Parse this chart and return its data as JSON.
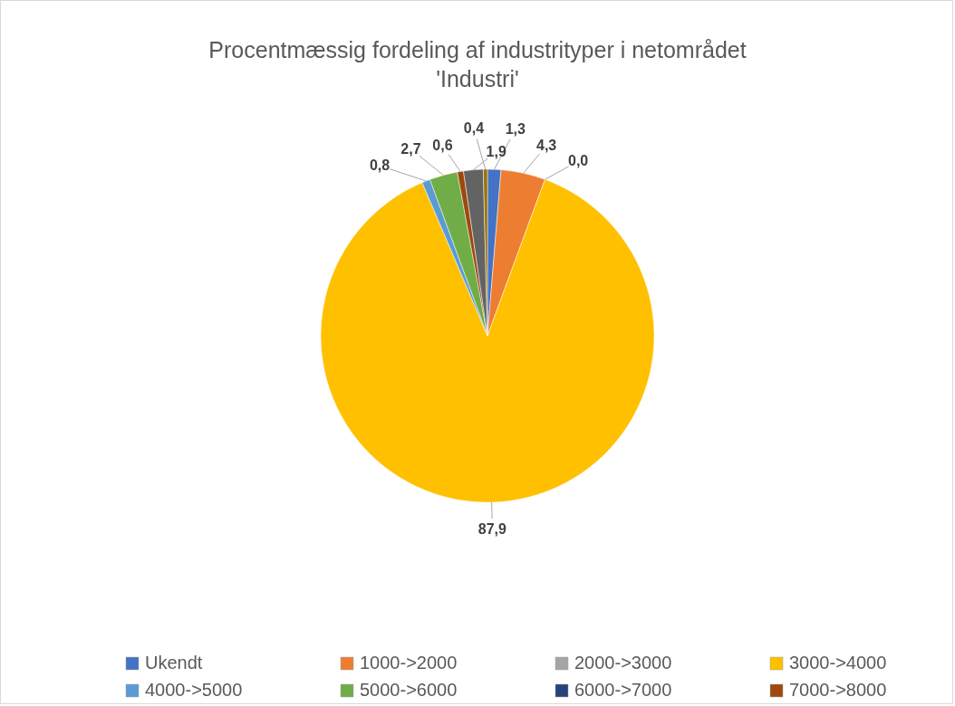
{
  "chart_data": {
    "type": "pie",
    "title": "Procentmæssig fordeling af industrityper i netområdet 'Industri'",
    "categories": [
      "Ukendt",
      "1000->2000",
      "2000->3000",
      "3000->4000",
      "4000->5000",
      "5000->6000",
      "6000->7000",
      "7000->8000",
      null,
      null
    ],
    "values": [
      1.3,
      4.3,
      0.0,
      87.9,
      0.8,
      2.7,
      null,
      0.6,
      1.9,
      0.4
    ],
    "value_labels": [
      "1,3",
      "4,3",
      "0,0",
      "87,9",
      "0,8",
      "2,7",
      null,
      "0,6",
      "1,9",
      "0,4"
    ],
    "colors": [
      "#4472c4",
      "#ed7d31",
      "#a5a5a5",
      "#ffc000",
      "#5b9bd5",
      "#70ad47",
      "#264478",
      "#9e480e",
      "#636363",
      "#997300"
    ],
    "legend": "bottom"
  }
}
